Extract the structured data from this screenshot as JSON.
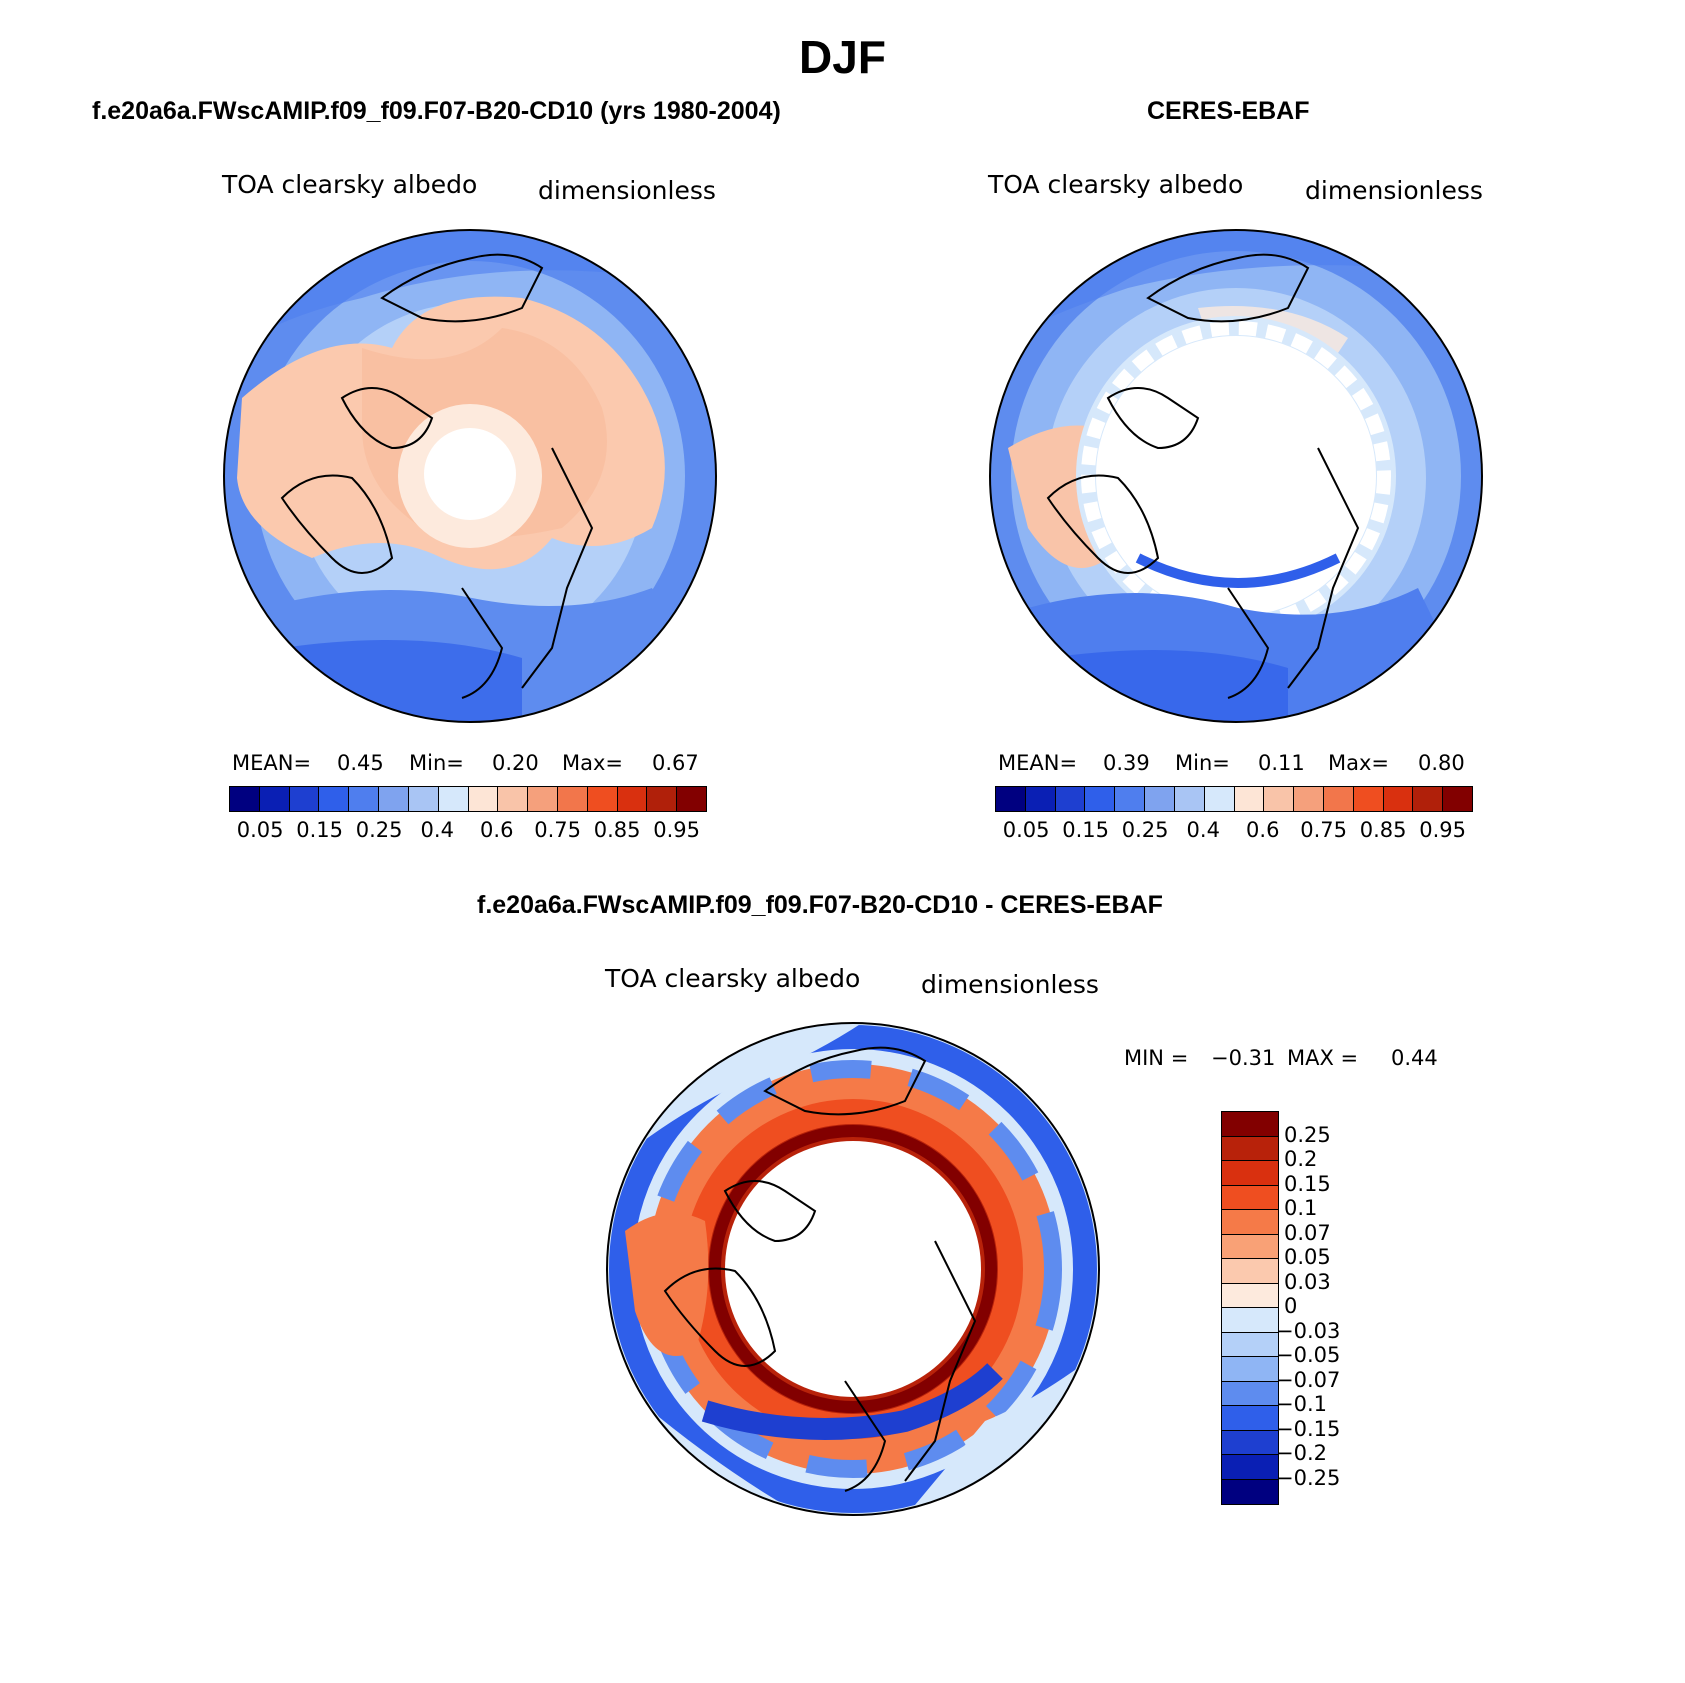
{
  "figure_title": "DJF",
  "colors": {
    "abs_scale": [
      "#000080",
      "#0a1fb4",
      "#1e3fd0",
      "#2f5fea",
      "#4f7eee",
      "#7fa3ef",
      "#a9c5f4",
      "#d6e8fb",
      "#fde5d6",
      "#f9c4a9",
      "#f5a07c",
      "#f2764b",
      "#ef4e20",
      "#d9300f",
      "#b0200a",
      "#820000"
    ],
    "diff_scale": [
      "#820000",
      "#b8220a",
      "#d9300f",
      "#ef4e20",
      "#f57a48",
      "#f9a176",
      "#fbc9ae",
      "#fdeadd",
      "#d6e8fb",
      "#b4d0f8",
      "#8fb5f4",
      "#5e8cef",
      "#2f5fea",
      "#1e3fd0",
      "#0a1fb4",
      "#000080"
    ],
    "land_outline": "#000000"
  },
  "panels": {
    "model": {
      "title": "f.e20a6a.FWscAMIP.f09_f09.F07-B20-CD10 (yrs 1980-2004)",
      "variable": "TOA clearsky albedo",
      "units": "dimensionless",
      "mean_label": "MEAN=",
      "mean_value": "0.45",
      "min_label": "Min=",
      "min_value": "0.20",
      "max_label": "Max=",
      "max_value": "0.67"
    },
    "obs": {
      "title": "CERES-EBAF",
      "variable": "TOA clearsky albedo",
      "units": "dimensionless",
      "mean_label": "MEAN=",
      "mean_value": "0.39",
      "min_label": "Min=",
      "min_value": "0.11",
      "max_label": "Max=",
      "max_value": "0.80"
    },
    "diff": {
      "title": "f.e20a6a.FWscAMIP.f09_f09.F07-B20-CD10 - CERES-EBAF",
      "variable": "TOA clearsky albedo",
      "units": "dimensionless",
      "min_label": "MIN =",
      "min_value": "−0.31",
      "max_label": "MAX =",
      "max_value": "0.44"
    }
  },
  "abs_colorbar_ticks": [
    "0.05",
    "0.15",
    "0.25",
    "0.4",
    "0.6",
    "0.75",
    "0.85",
    "0.95"
  ],
  "diff_colorbar_ticks": [
    "0.25",
    "0.2",
    "0.15",
    "0.1",
    "0.07",
    "0.05",
    "0.03",
    "0",
    "−0.03",
    "−0.05",
    "−0.07",
    "−0.1",
    "−0.15",
    "−0.2",
    "−0.25"
  ]
}
